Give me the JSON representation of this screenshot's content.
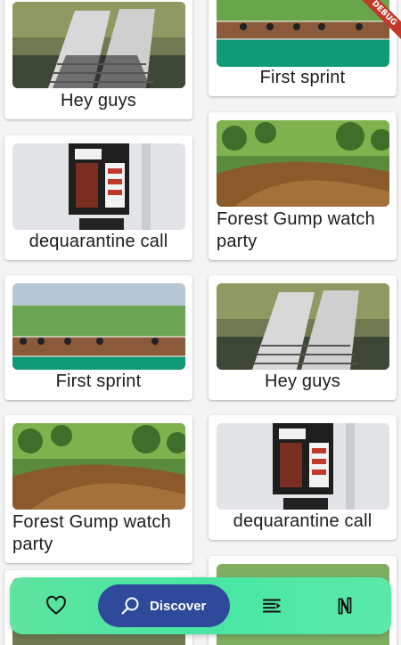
{
  "banner": "DEBUG",
  "cards": {
    "c0": {
      "title": "Hey guys"
    },
    "c1": {
      "title": "First sprint"
    },
    "c2": {
      "title": "dequarantine call"
    },
    "c3": {
      "title": "Forest Gump watch party"
    },
    "c4": {
      "title": "First sprint"
    },
    "c5": {
      "title": "Hey guys"
    },
    "c6": {
      "title": "Forest Gump watch party"
    },
    "c7": {
      "title": "dequarantine call"
    }
  },
  "nav": {
    "discover_label": "Discover",
    "items": [
      "heart-icon",
      "search-icon",
      "list-icon",
      "nft-icon"
    ]
  },
  "colors": {
    "nav_bg": "#47e6a2",
    "pill_bg": "#2f4a9a",
    "card_bg": "#ffffff"
  }
}
